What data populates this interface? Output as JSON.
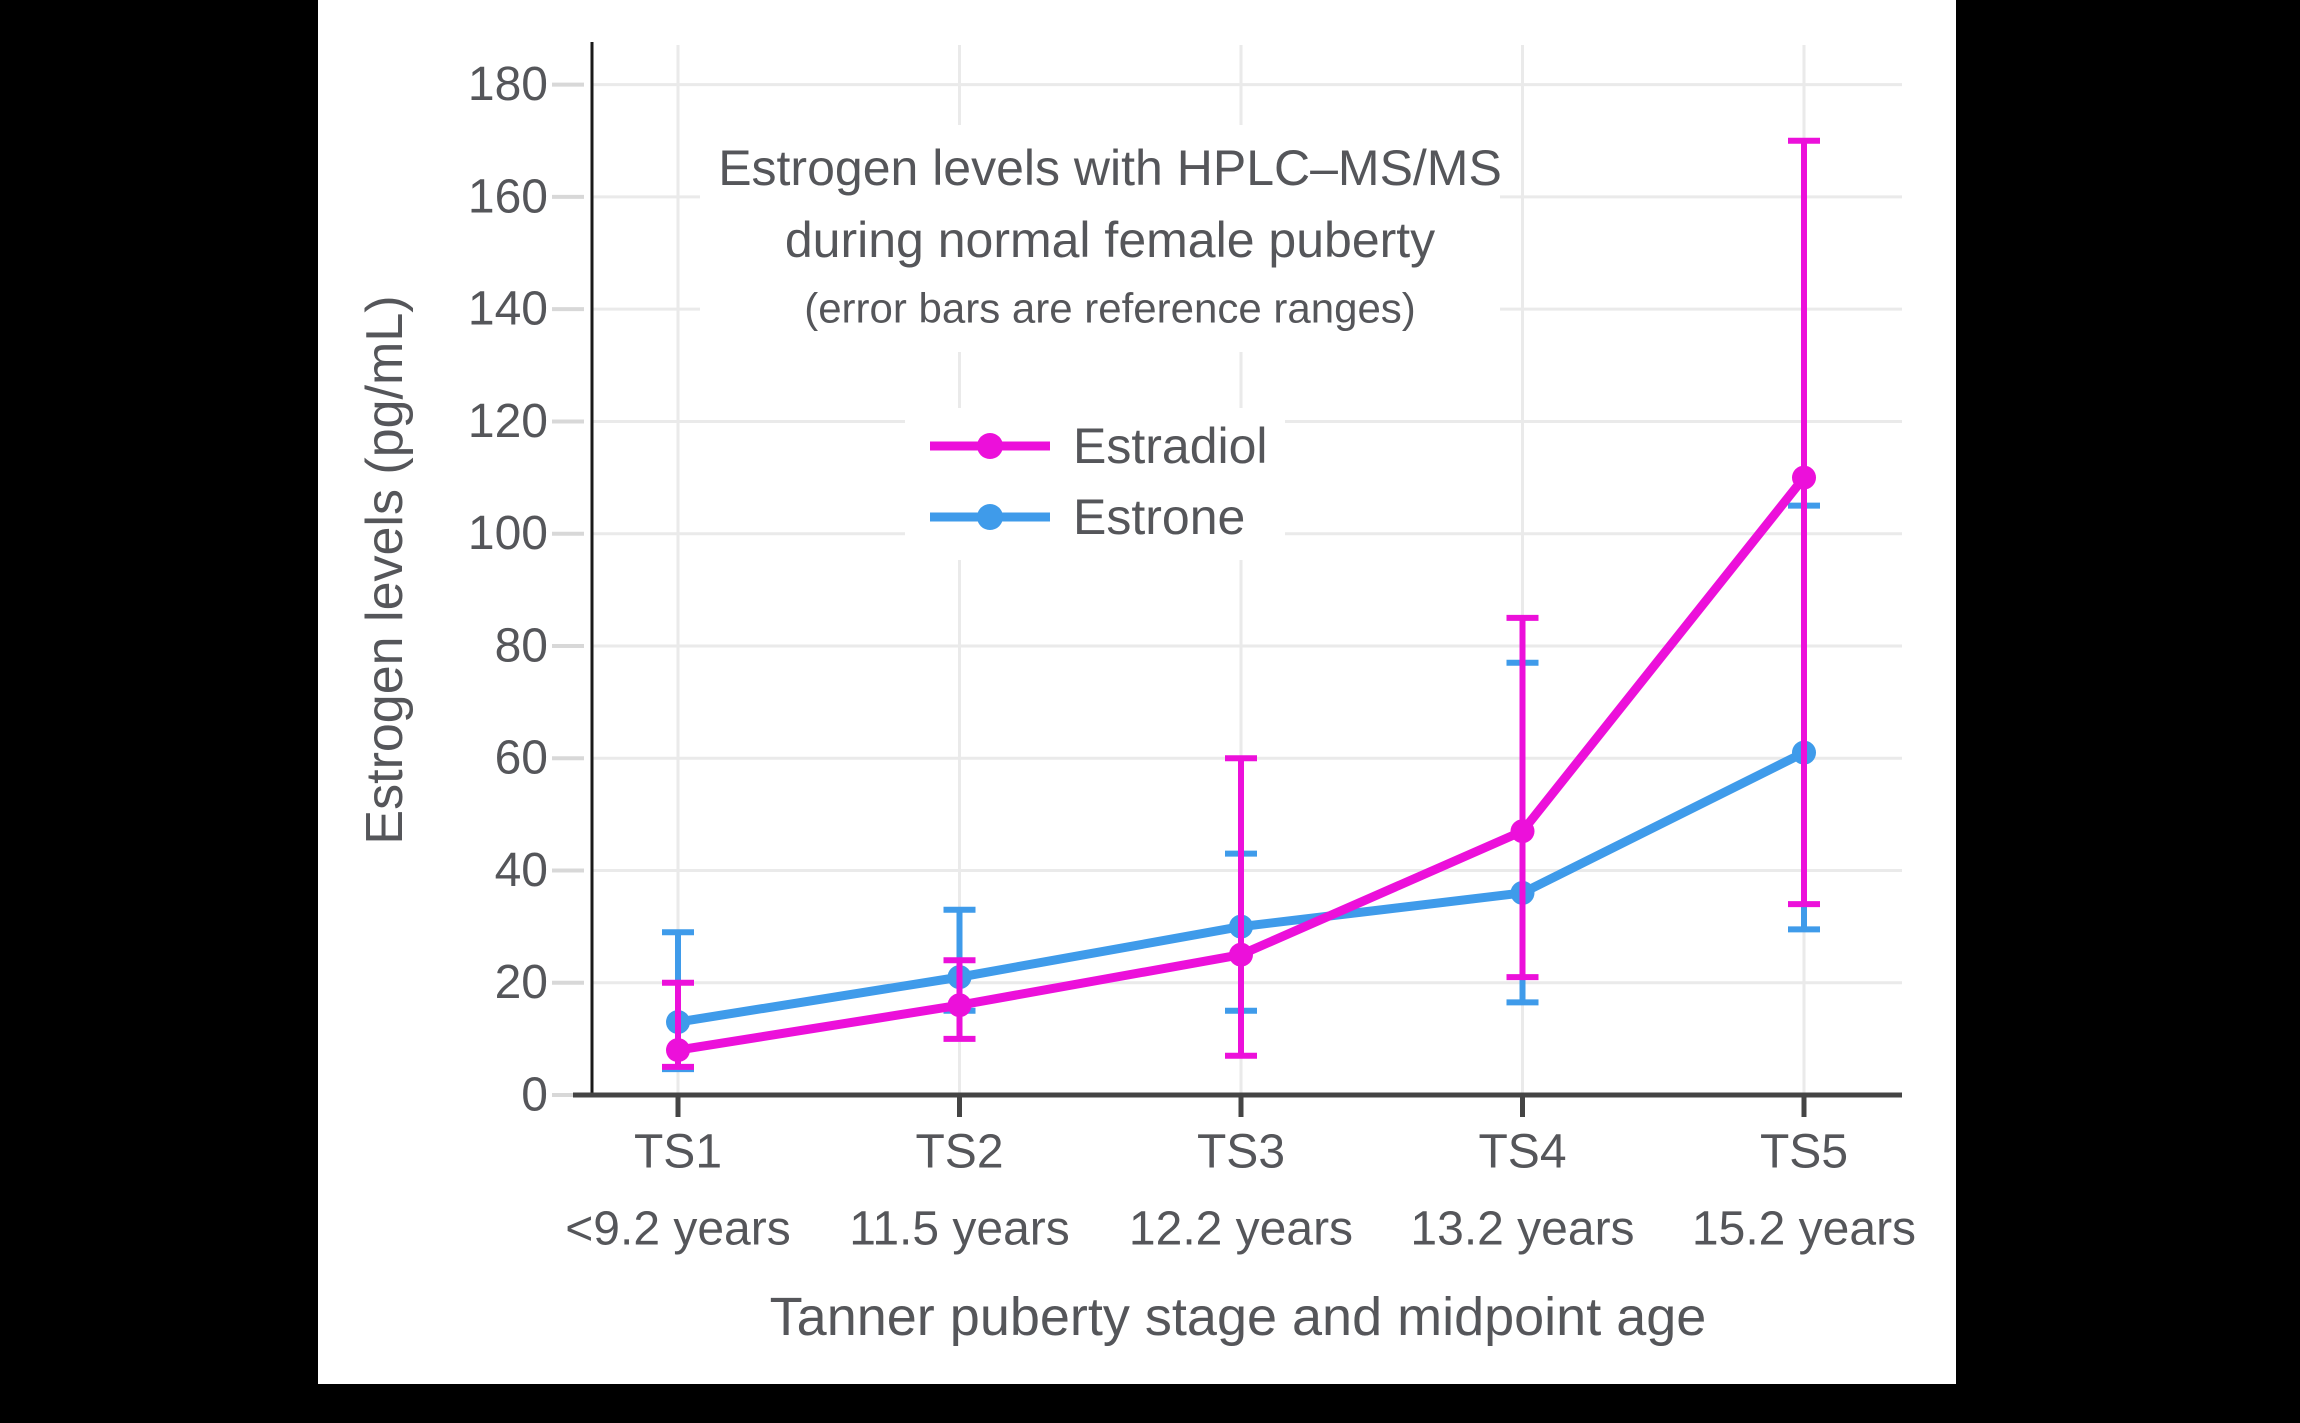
{
  "window": {
    "background": "#000000",
    "panel_background": "#FFFFFF"
  },
  "colors": {
    "estradiol": "#EC10DA",
    "estrone": "#3F9BEA",
    "gridline": "#EAEAEA",
    "x_axis_line": "#444444",
    "y_axis_line": "#1A1A1A",
    "x_tick_mark": "#444444",
    "y_tick_dash": "#D8D8D8",
    "text": "#55565A"
  },
  "chart_data": {
    "type": "line",
    "title_line1": "Estrogen levels with HPLC–MS/MS",
    "title_line2": "during normal female puberty",
    "subtitle": "(error bars are reference ranges)",
    "xlabel": "Tanner puberty stage and midpoint age",
    "ylabel": "Estrogen levels (pg/mL)",
    "grid": true,
    "legend_position": "upper-center-inside",
    "ylim": [
      0,
      187
    ],
    "yticks": [
      0,
      20,
      40,
      60,
      80,
      100,
      120,
      140,
      160,
      180
    ],
    "categories": [
      {
        "stage": "TS1",
        "age": "<9.2 years"
      },
      {
        "stage": "TS2",
        "age": "11.5 years"
      },
      {
        "stage": "TS3",
        "age": "12.2 years"
      },
      {
        "stage": "TS4",
        "age": "13.2 years"
      },
      {
        "stage": "TS5",
        "age": "15.2 years"
      }
    ],
    "error_bars_meaning": "reference ranges",
    "series": [
      {
        "name": "Estradiol",
        "color_key": "estradiol",
        "values": [
          8,
          16,
          25,
          47,
          110
        ],
        "range_low": [
          5,
          10,
          7,
          21,
          34
        ],
        "range_high": [
          20,
          24,
          60,
          85,
          170
        ]
      },
      {
        "name": "Estrone",
        "color_key": "estrone",
        "values": [
          13,
          21,
          30,
          36,
          61
        ],
        "range_low": [
          4.6,
          15,
          15,
          16.5,
          29.5
        ],
        "range_high": [
          29,
          33,
          43,
          77,
          105
        ]
      }
    ]
  }
}
